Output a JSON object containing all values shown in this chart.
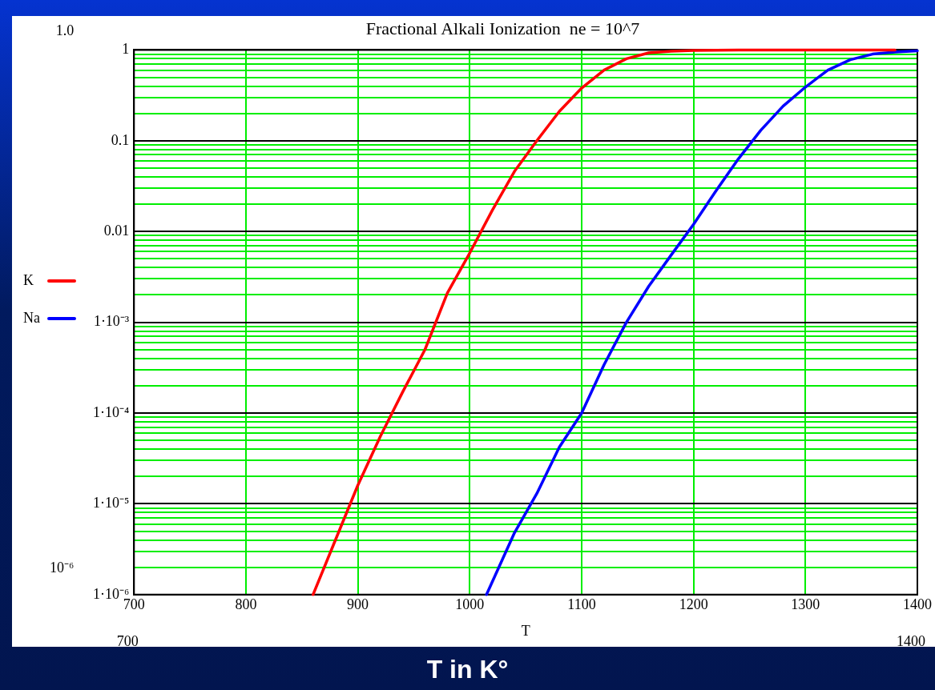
{
  "chart_data": {
    "type": "line",
    "title": "Fractional Alkali Ionization  ne = 10^7",
    "xlabel": "T",
    "series": [
      {
        "name": "K",
        "color": "#ff0000",
        "x": [
          860,
          880,
          900,
          920,
          940,
          960,
          980,
          1000,
          1020,
          1040,
          1060,
          1080,
          1100,
          1120,
          1140,
          1160,
          1180,
          1200,
          1240,
          1280,
          1320,
          1380
        ],
        "values": [
          1e-06,
          4e-06,
          1.6e-05,
          5.5e-05,
          0.00017,
          0.0005,
          0.0021,
          0.0058,
          0.017,
          0.046,
          0.1,
          0.21,
          0.38,
          0.6,
          0.8,
          0.93,
          0.97,
          0.99,
          1,
          1,
          1,
          1
        ]
      },
      {
        "name": "Na",
        "color": "#0000ff",
        "x": [
          1015,
          1040,
          1060,
          1080,
          1100,
          1120,
          1140,
          1160,
          1180,
          1200,
          1220,
          1240,
          1260,
          1280,
          1300,
          1320,
          1340,
          1360,
          1380,
          1400
        ],
        "values": [
          1e-06,
          4.8e-06,
          1.3e-05,
          4.2e-05,
          0.0001,
          0.00034,
          0.001,
          0.0025,
          0.0055,
          0.012,
          0.028,
          0.063,
          0.13,
          0.24,
          0.39,
          0.6,
          0.78,
          0.9,
          0.95,
          0.98
        ]
      }
    ],
    "xlim": [
      700,
      1400
    ],
    "xticks": [
      700,
      800,
      900,
      1000,
      1100,
      1200,
      1300,
      1400
    ],
    "ylim": [
      1e-06,
      1
    ],
    "log": true,
    "yticks": [
      {
        "value": 1e-06,
        "label": "1·10⁻⁶"
      },
      {
        "value": 2e-06,
        "label": null
      },
      {
        "value": 3e-06,
        "label": null
      },
      {
        "value": 4e-06,
        "label": null
      },
      {
        "value": 5e-06,
        "label": null
      },
      {
        "value": 6e-06,
        "label": null
      },
      {
        "value": 7e-06,
        "label": null
      },
      {
        "value": 8e-06,
        "label": null
      },
      {
        "value": 9e-06,
        "label": null
      },
      {
        "value": 1e-05,
        "label": "1·10⁻⁵"
      },
      {
        "value": 2e-05,
        "label": null
      },
      {
        "value": 3e-05,
        "label": null
      },
      {
        "value": 4e-05,
        "label": null
      },
      {
        "value": 5e-05,
        "label": null
      },
      {
        "value": 6e-05,
        "label": null
      },
      {
        "value": 7e-05,
        "label": null
      },
      {
        "value": 8e-05,
        "label": null
      },
      {
        "value": 9e-05,
        "label": null
      },
      {
        "value": 0.0001,
        "label": "1·10⁻⁴"
      },
      {
        "value": 0.0002,
        "label": null
      },
      {
        "value": 0.0003,
        "label": null
      },
      {
        "value": 0.0004,
        "label": null
      },
      {
        "value": 0.0005,
        "label": null
      },
      {
        "value": 0.0006,
        "label": null
      },
      {
        "value": 0.0007,
        "label": null
      },
      {
        "value": 0.0008,
        "label": null
      },
      {
        "value": 0.0009,
        "label": null
      },
      {
        "value": 0.001,
        "label": "1·10⁻³"
      },
      {
        "value": 0.002,
        "label": null
      },
      {
        "value": 0.003,
        "label": null
      },
      {
        "value": 0.004,
        "label": null
      },
      {
        "value": 0.005,
        "label": null
      },
      {
        "value": 0.006,
        "label": null
      },
      {
        "value": 0.007,
        "label": null
      },
      {
        "value": 0.008,
        "label": null
      },
      {
        "value": 0.009,
        "label": null
      },
      {
        "value": 0.01,
        "label": "0.01"
      },
      {
        "value": 0.02,
        "label": null
      },
      {
        "value": 0.03,
        "label": null
      },
      {
        "value": 0.04,
        "label": null
      },
      {
        "value": 0.05,
        "label": null
      },
      {
        "value": 0.06,
        "label": null
      },
      {
        "value": 0.07,
        "label": null
      },
      {
        "value": 0.08,
        "label": null
      },
      {
        "value": 0.09,
        "label": null
      },
      {
        "value": 0.1,
        "label": "0.1"
      },
      {
        "value": 0.2,
        "label": null
      },
      {
        "value": 0.3,
        "label": null
      },
      {
        "value": 0.4,
        "label": null
      },
      {
        "value": 0.5,
        "label": null
      },
      {
        "value": 0.6,
        "label": null
      },
      {
        "value": 0.7,
        "label": null
      },
      {
        "value": 0.8,
        "label": null
      },
      {
        "value": 0.9,
        "label": null
      },
      {
        "value": 1,
        "label": "1"
      }
    ],
    "grid": true,
    "legend": "left",
    "annotations": [
      "1.0",
      "10⁻⁶",
      "700",
      "1400",
      "T in K°"
    ]
  }
}
